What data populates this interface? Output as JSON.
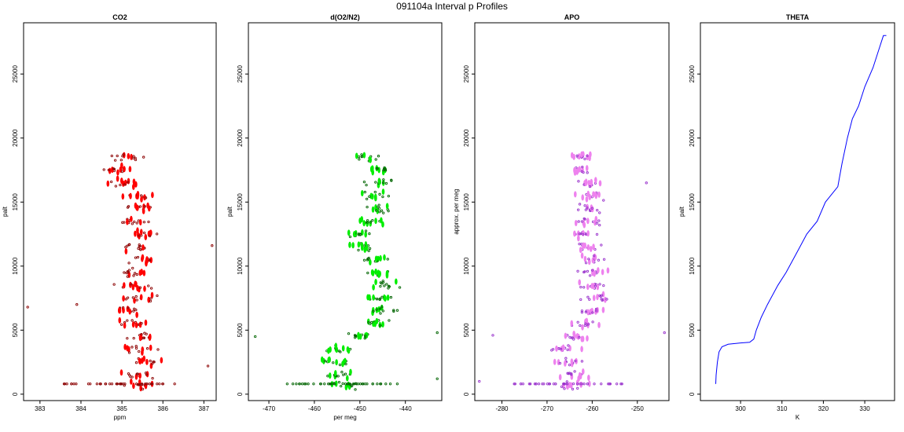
{
  "title": "091104a   Interval p Profiles",
  "colors": {
    "co2": "#ff0000",
    "co2_edge": "#8b0000",
    "o2n2": "#00ee00",
    "o2n2_edge": "#006400",
    "apo": "#ee82ee",
    "apo_edge": "#9932cc",
    "theta": "#0000ff"
  },
  "chart_data": [
    {
      "type": "scatter",
      "title": "CO2",
      "xlabel": "ppm",
      "ylabel": "palt",
      "xlim": [
        382.6,
        387.3
      ],
      "ylim": [
        -500,
        29000
      ],
      "xticks": [
        "383",
        "384",
        "385",
        "386",
        "387"
      ],
      "xtick_values": [
        383,
        384,
        385,
        386,
        387
      ],
      "yticks": [
        "0",
        "5000",
        "10000",
        "15000",
        "20000",
        "25000"
      ],
      "ytick_values": [
        0,
        5000,
        10000,
        15000,
        20000,
        25000
      ],
      "cluster_centers": [
        [
          700,
          385.4
        ],
        [
          1500,
          385.4
        ],
        [
          2500,
          385.6
        ],
        [
          3500,
          385.5
        ],
        [
          4500,
          385.5
        ],
        [
          5500,
          385.3
        ],
        [
          6500,
          385.1
        ],
        [
          7500,
          385.5
        ],
        [
          8500,
          385.3
        ],
        [
          9500,
          385.2
        ],
        [
          10500,
          385.5
        ],
        [
          11500,
          385.4
        ],
        [
          12500,
          385.6
        ],
        [
          13500,
          385.3
        ],
        [
          14500,
          385.4
        ],
        [
          15500,
          385.5
        ],
        [
          16500,
          385.0
        ],
        [
          17500,
          384.9
        ],
        [
          18500,
          385.1
        ]
      ],
      "spread": 0.55,
      "outliers": [
        [
          6800,
          382.7
        ],
        [
          11600,
          387.2
        ],
        [
          2200,
          387.1
        ],
        [
          7000,
          383.9
        ]
      ]
    },
    {
      "type": "scatter",
      "title": "d(O2/N2)",
      "xlabel": "per meg",
      "ylabel": "palt",
      "xlim": [
        -474.5,
        -432
      ],
      "ylim": [
        -500,
        29000
      ],
      "xticks": [
        "-470",
        "-460",
        "-450",
        "-440"
      ],
      "xtick_values": [
        -470,
        -460,
        -450,
        -440
      ],
      "yticks": [
        "0",
        "5000",
        "10000",
        "15000",
        "20000",
        "25000"
      ],
      "ytick_values": [
        0,
        5000,
        10000,
        15000,
        20000,
        25000
      ],
      "cluster_centers": [
        [
          700,
          -453
        ],
        [
          1500,
          -454
        ],
        [
          2500,
          -456
        ],
        [
          3500,
          -455
        ],
        [
          4500,
          -450
        ],
        [
          5500,
          -447
        ],
        [
          6500,
          -445
        ],
        [
          7500,
          -446
        ],
        [
          8500,
          -445
        ],
        [
          9500,
          -446
        ],
        [
          10500,
          -447
        ],
        [
          11500,
          -449
        ],
        [
          12500,
          -450
        ],
        [
          13500,
          -448
        ],
        [
          14500,
          -446
        ],
        [
          15500,
          -447
        ],
        [
          16500,
          -445
        ],
        [
          17500,
          -446
        ],
        [
          18500,
          -448
        ]
      ],
      "spread": 4.5,
      "outliers": [
        [
          4500,
          -473
        ],
        [
          4800,
          -433
        ],
        [
          1200,
          -433
        ]
      ]
    },
    {
      "type": "scatter",
      "title": "APO",
      "xlabel": "",
      "ylabel": "approx. per meg",
      "xlim": [
        -286,
        -243
      ],
      "ylim": [
        -500,
        29000
      ],
      "xticks": [
        "-280",
        "-270",
        "-260",
        "-250"
      ],
      "xtick_values": [
        -280,
        -270,
        -260,
        -250
      ],
      "yticks": [
        "0",
        "5000",
        "10000",
        "15000",
        "20000",
        "25000"
      ],
      "ytick_values": [
        0,
        5000,
        10000,
        15000,
        20000,
        25000
      ],
      "cluster_centers": [
        [
          700,
          -264
        ],
        [
          1500,
          -264
        ],
        [
          2500,
          -265
        ],
        [
          3500,
          -266
        ],
        [
          4500,
          -264
        ],
        [
          5500,
          -261
        ],
        [
          6500,
          -260
        ],
        [
          7500,
          -259
        ],
        [
          8500,
          -260
        ],
        [
          9500,
          -260
        ],
        [
          10500,
          -260
        ],
        [
          11500,
          -261
        ],
        [
          12500,
          -262
        ],
        [
          13500,
          -261
        ],
        [
          14500,
          -261
        ],
        [
          15500,
          -260
        ],
        [
          16500,
          -261
        ],
        [
          17500,
          -262
        ],
        [
          18500,
          -262
        ]
      ],
      "spread": 4.2,
      "outliers": [
        [
          4600,
          -282
        ],
        [
          4800,
          -244
        ],
        [
          1000,
          -285
        ],
        [
          16500,
          -248
        ]
      ]
    },
    {
      "type": "line",
      "title": "THETA",
      "xlabel": "K",
      "ylabel": "palt",
      "xlim": [
        290.3,
        337.2
      ],
      "ylim": [
        -500,
        29000
      ],
      "xticks": [
        "300",
        "310",
        "320",
        "330"
      ],
      "xtick_values": [
        300,
        310,
        320,
        330
      ],
      "yticks": [
        "0",
        "5000",
        "10000",
        "15000",
        "20000",
        "25000"
      ],
      "ytick_values": [
        0,
        5000,
        10000,
        15000,
        20000,
        25000
      ],
      "line": [
        [
          294.0,
          800
        ],
        [
          294.1,
          1500
        ],
        [
          294.4,
          2500
        ],
        [
          294.8,
          3300
        ],
        [
          295.5,
          3700
        ],
        [
          297,
          3900
        ],
        [
          300,
          4000
        ],
        [
          302.2,
          4050
        ],
        [
          303.2,
          4300
        ],
        [
          303.8,
          5000
        ],
        [
          305,
          6000
        ],
        [
          306.5,
          7000
        ],
        [
          309,
          8500
        ],
        [
          311,
          9500
        ],
        [
          313.5,
          11000
        ],
        [
          316,
          12500
        ],
        [
          318.5,
          13500
        ],
        [
          320.5,
          15000
        ],
        [
          323.5,
          16200
        ],
        [
          324.5,
          18000
        ],
        [
          325.8,
          20000
        ],
        [
          327,
          21500
        ],
        [
          328.5,
          22500
        ],
        [
          330,
          24000
        ],
        [
          332,
          25500
        ],
        [
          333.5,
          27000
        ],
        [
          334.5,
          28000
        ],
        [
          335.2,
          28000
        ]
      ]
    }
  ]
}
